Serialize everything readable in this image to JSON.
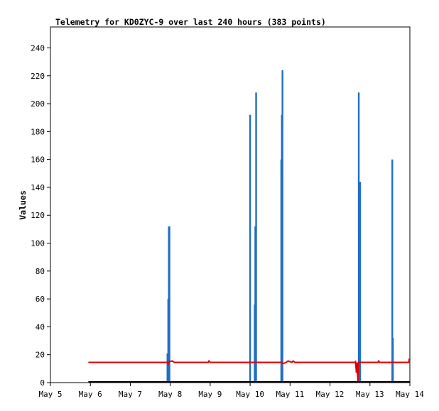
{
  "chart_data": {
    "type": "bar",
    "title": "Telemetry for KD0ZYC-9 over last 240 hours (383 points)",
    "xlabel": "",
    "ylabel": "Values",
    "xlim": [
      0,
      9
    ],
    "ylim": [
      0,
      255
    ],
    "x_ticks": [
      {
        "x": 0,
        "label": "May 5"
      },
      {
        "x": 1,
        "label": "May 6"
      },
      {
        "x": 2,
        "label": "May 7"
      },
      {
        "x": 3,
        "label": "May 8"
      },
      {
        "x": 4,
        "label": "May 9"
      },
      {
        "x": 5,
        "label": "May 10"
      },
      {
        "x": 6,
        "label": "May 11"
      },
      {
        "x": 7,
        "label": "May 12"
      },
      {
        "x": 8,
        "label": "May 13"
      },
      {
        "x": 9,
        "label": "May 14"
      }
    ],
    "y_ticks": [
      0,
      20,
      40,
      60,
      80,
      100,
      120,
      140,
      160,
      180,
      200,
      220,
      240
    ],
    "grid": false,
    "colors": {
      "bars": "#1f6fc5",
      "line": "#e00000",
      "axis": "#000000",
      "baseline": "#000000"
    },
    "series": [
      {
        "color": "#1f6fc5",
        "kind": "bars",
        "points": [
          {
            "x": 2.93,
            "y": 21
          },
          {
            "x": 2.95,
            "y": 60
          },
          {
            "x": 2.965,
            "y": 112
          },
          {
            "x": 2.98,
            "y": 112
          },
          {
            "x": 5.0,
            "y": 192
          },
          {
            "x": 5.115,
            "y": 56
          },
          {
            "x": 5.13,
            "y": 112
          },
          {
            "x": 5.15,
            "y": 208
          },
          {
            "x": 5.78,
            "y": 160
          },
          {
            "x": 5.795,
            "y": 192
          },
          {
            "x": 5.81,
            "y": 224
          },
          {
            "x": 7.7,
            "y": 10
          },
          {
            "x": 7.72,
            "y": 208
          },
          {
            "x": 7.735,
            "y": 108
          },
          {
            "x": 7.755,
            "y": 144
          },
          {
            "x": 8.56,
            "y": 160
          },
          {
            "x": 8.575,
            "y": 32
          }
        ]
      },
      {
        "color": "#e00000",
        "kind": "line",
        "points": [
          {
            "x": 0.95,
            "y": 14.5
          },
          {
            "x": 2.93,
            "y": 14.5
          },
          {
            "x": 2.95,
            "y": 13.5
          },
          {
            "x": 2.97,
            "y": 15
          },
          {
            "x": 3.05,
            "y": 15.5
          },
          {
            "x": 3.1,
            "y": 14.5
          },
          {
            "x": 3.95,
            "y": 14.5
          },
          {
            "x": 3.97,
            "y": 15.5
          },
          {
            "x": 4.0,
            "y": 14.5
          },
          {
            "x": 5.8,
            "y": 14.5
          },
          {
            "x": 5.82,
            "y": 13.5
          },
          {
            "x": 5.9,
            "y": 14.5
          },
          {
            "x": 5.95,
            "y": 15.5
          },
          {
            "x": 6.0,
            "y": 15
          },
          {
            "x": 6.05,
            "y": 14.5
          },
          {
            "x": 6.08,
            "y": 15.5
          },
          {
            "x": 6.12,
            "y": 14.5
          },
          {
            "x": 7.62,
            "y": 14.5
          },
          {
            "x": 7.64,
            "y": 15
          },
          {
            "x": 7.66,
            "y": 7
          },
          {
            "x": 7.68,
            "y": 14.5
          },
          {
            "x": 7.7,
            "y": 0
          },
          {
            "x": 7.72,
            "y": 14.5
          },
          {
            "x": 7.74,
            "y": 14.5
          },
          {
            "x": 7.76,
            "y": 14.5
          },
          {
            "x": 7.8,
            "y": 14.5
          },
          {
            "x": 8.2,
            "y": 14.5
          },
          {
            "x": 8.22,
            "y": 15.5
          },
          {
            "x": 8.24,
            "y": 14.5
          },
          {
            "x": 8.97,
            "y": 14.5
          },
          {
            "x": 8.98,
            "y": 16
          },
          {
            "x": 9.0,
            "y": 14.5
          }
        ]
      },
      {
        "color": "#000000",
        "kind": "line",
        "points": [
          {
            "x": 0.95,
            "y": 0.5
          },
          {
            "x": 9.0,
            "y": 0.5
          }
        ]
      }
    ]
  }
}
